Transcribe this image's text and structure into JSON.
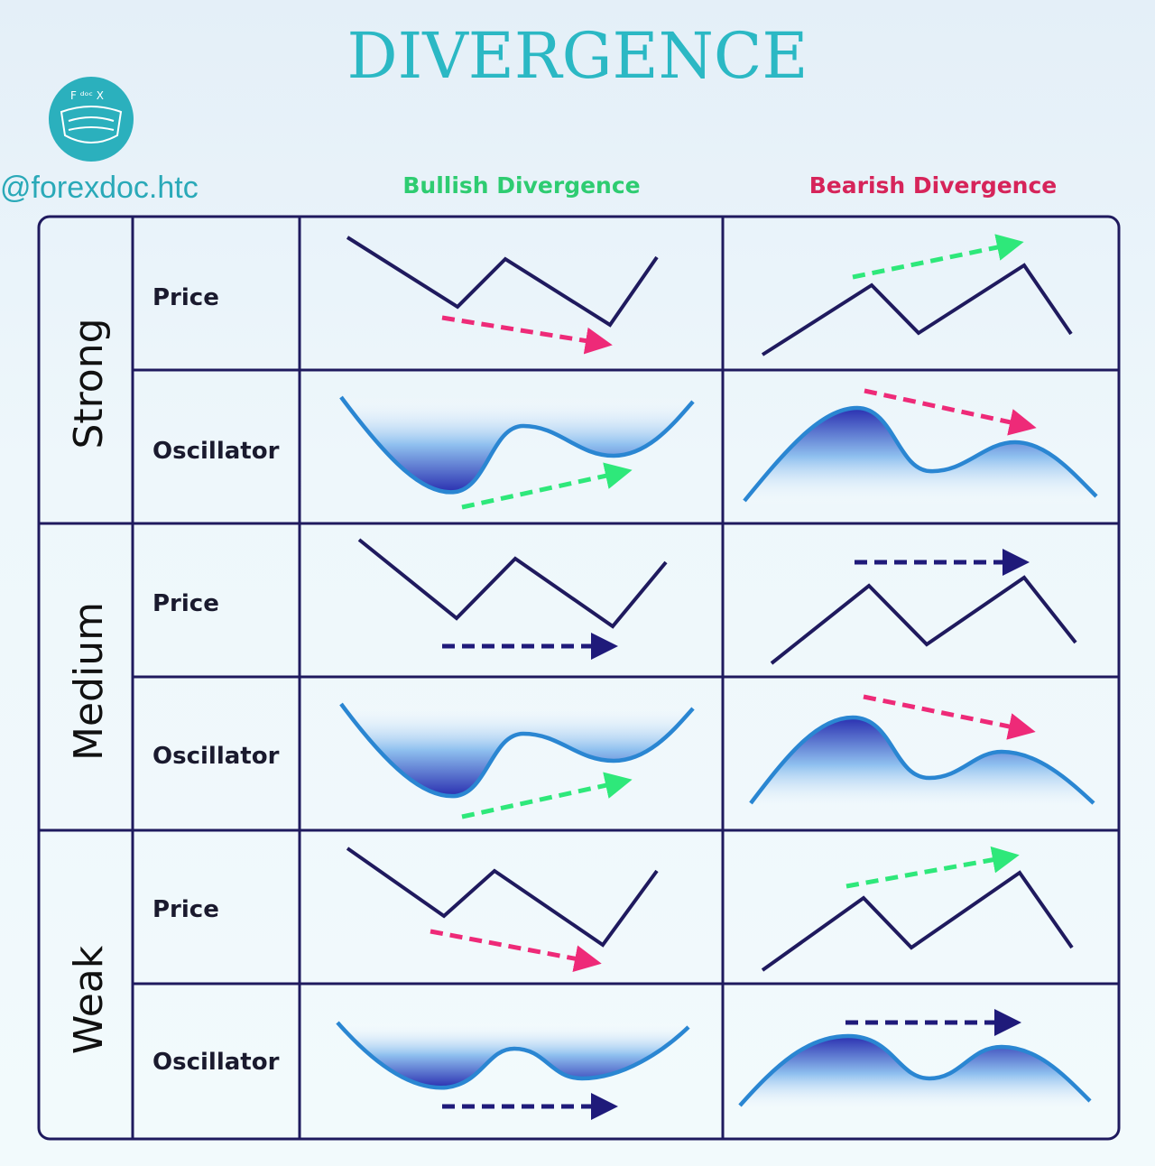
{
  "title": "DIVERGENCE",
  "logo": {
    "text": "F doc X",
    "handle": "@forexdoc.htc"
  },
  "columns": {
    "bullish": "Bullish Divergence",
    "bearish": "Bearish Divergence"
  },
  "strengths": [
    "Strong",
    "Medium",
    "Weak"
  ],
  "row_types": [
    "Price",
    "Oscillator",
    "Price",
    "Oscillator",
    "Price",
    "Oscillator"
  ],
  "colors": {
    "title": "#2bb8c4",
    "bullish": "#2ecc71",
    "bearish": "#d6245a",
    "line": "#1f1a5e",
    "oscillator": "#2a86d2",
    "neutral": "#1f1a7a"
  }
}
